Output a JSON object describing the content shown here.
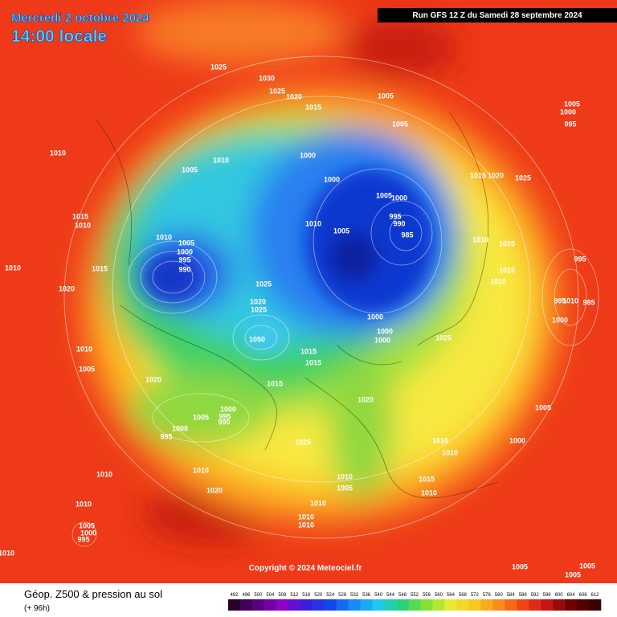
{
  "header": {
    "date": "Mercredi 2 octobre 2024",
    "time": "14:00 locale",
    "run": "Run GFS 12 Z du Samedi 28 septembre 2024"
  },
  "copyright": "Copyright © 2024 Meteociel.fr",
  "footer": {
    "title": "Géop. Z500 & pression au sol",
    "lead": "(+ 96h)"
  },
  "scale": {
    "labels": [
      "492",
      "496",
      "500",
      "504",
      "508",
      "512",
      "516",
      "520",
      "524",
      "528",
      "532",
      "536",
      "540",
      "544",
      "548",
      "552",
      "556",
      "560",
      "564",
      "568",
      "572",
      "576",
      "580",
      "584",
      "588",
      "592",
      "596",
      "600",
      "604",
      "608",
      "612"
    ]
  },
  "pressure_labels": [
    "1025",
    "1030",
    "1025",
    "1020",
    "1015",
    "1005",
    "1005",
    "1005",
    "1000",
    "995",
    "1010",
    "1005",
    "1010",
    "1000",
    "1000",
    "1005",
    "1000",
    "995",
    "990",
    "985",
    "1015",
    "1020",
    "1025",
    "1015",
    "1010",
    "1010",
    "1005",
    "1000",
    "995",
    "990",
    "1010",
    "1005",
    "1010",
    "1020",
    "995",
    "1015",
    "1010",
    "1010",
    "1010",
    "1020",
    "1025",
    "1020",
    "1025",
    "995",
    "1010",
    "985",
    "1000",
    "1000",
    "1000",
    "1000",
    "1025",
    "1050",
    "1015",
    "1015",
    "1010",
    "1005",
    "1020",
    "1015",
    "1020",
    "1000",
    "995",
    "990",
    "1005",
    "1000",
    "995",
    "1005",
    "1025",
    "1010",
    "1000",
    "1010",
    "1010",
    "1010",
    "1010",
    "1005",
    "1015",
    "1010",
    "1020",
    "1010",
    "1010",
    "1010",
    "1010",
    "1005",
    "1000",
    "995",
    "1010",
    "1005",
    "1005",
    "1005"
  ]
}
